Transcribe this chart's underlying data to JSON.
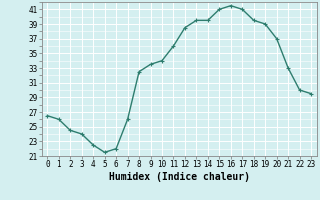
{
  "x": [
    0,
    1,
    2,
    3,
    4,
    5,
    6,
    7,
    8,
    9,
    10,
    11,
    12,
    13,
    14,
    15,
    16,
    17,
    18,
    19,
    20,
    21,
    22,
    23
  ],
  "y": [
    26.5,
    26,
    24.5,
    24,
    22.5,
    21.5,
    22,
    26,
    32.5,
    33.5,
    34,
    36,
    38.5,
    39.5,
    39.5,
    41,
    41.5,
    41,
    39.5,
    39,
    37,
    33,
    30,
    29.5
  ],
  "line_color": "#2e7d6e",
  "marker": "+",
  "marker_size": 3,
  "bg_color": "#d4eff0",
  "grid_color": "#ffffff",
  "xlabel": "Humidex (Indice chaleur)",
  "ylabel": "",
  "title": "",
  "xlim": [
    -0.5,
    23.5
  ],
  "ylim": [
    21,
    42
  ],
  "yticks": [
    21,
    23,
    25,
    27,
    29,
    31,
    33,
    35,
    37,
    39,
    41
  ],
  "xticks": [
    0,
    1,
    2,
    3,
    4,
    5,
    6,
    7,
    8,
    9,
    10,
    11,
    12,
    13,
    14,
    15,
    16,
    17,
    18,
    19,
    20,
    21,
    22,
    23
  ],
  "tick_label_fontsize": 5.5,
  "xlabel_fontsize": 7.0,
  "line_width": 1.0
}
